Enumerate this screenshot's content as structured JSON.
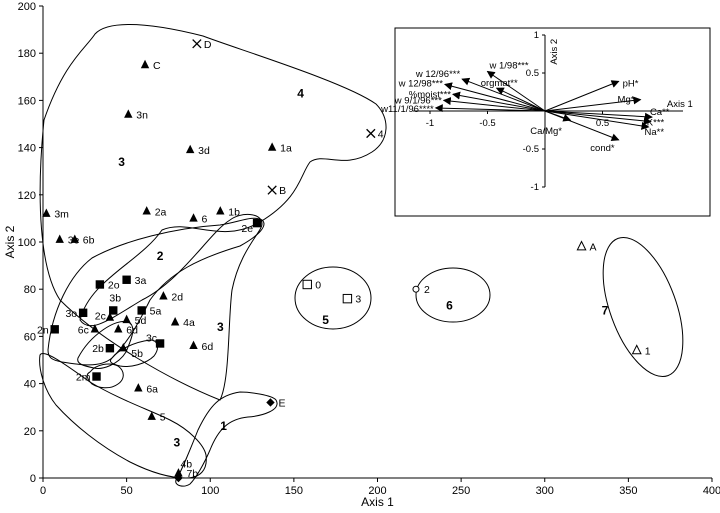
{
  "chart_data": {
    "type": "scatter",
    "title": "",
    "xlabel": "Axis 1",
    "ylabel": "Axis 2",
    "xlim": [
      0,
      400
    ],
    "ylim": [
      0,
      200
    ],
    "xticks": [
      "0",
      "50",
      "100",
      "150",
      "200",
      "250",
      "300",
      "350",
      "400"
    ],
    "yticks": [
      "0",
      "20",
      "40",
      "60",
      "80",
      "100",
      "120",
      "140",
      "160",
      "180",
      "200"
    ],
    "points": [
      {
        "label": "D",
        "x": 92,
        "y": 184,
        "marker": "cross"
      },
      {
        "label": "C",
        "x": 61,
        "y": 175,
        "marker": "triangle"
      },
      {
        "label": "3n",
        "x": 51,
        "y": 154,
        "marker": "triangle"
      },
      {
        "label": "3d",
        "x": 88,
        "y": 139,
        "marker": "triangle"
      },
      {
        "label": "1a",
        "x": 137,
        "y": 140,
        "marker": "triangle"
      },
      {
        "label": "4",
        "x": 196,
        "y": 146,
        "marker": "cross"
      },
      {
        "label": "B",
        "x": 137,
        "y": 122,
        "marker": "cross"
      },
      {
        "label": "3m",
        "x": 2,
        "y": 112,
        "marker": "triangle"
      },
      {
        "label": "2a",
        "x": 62,
        "y": 113,
        "marker": "triangle"
      },
      {
        "label": "6",
        "x": 90,
        "y": 110,
        "marker": "triangle"
      },
      {
        "label": "1b",
        "x": 106,
        "y": 113,
        "marker": "triangle"
      },
      {
        "label": "2e",
        "x": 128,
        "y": 108,
        "marker": "square"
      },
      {
        "label": "3e",
        "x": 10,
        "y": 101,
        "marker": "triangle"
      },
      {
        "label": "6b",
        "x": 19,
        "y": 101,
        "marker": "triangle"
      },
      {
        "label": "3a",
        "x": 50,
        "y": 84,
        "marker": "square"
      },
      {
        "label": "2o",
        "x": 34,
        "y": 82,
        "marker": "square"
      },
      {
        "label": "2d",
        "x": 72,
        "y": 77,
        "marker": "triangle"
      },
      {
        "label": "3b",
        "x": 42,
        "y": 71,
        "marker": "square"
      },
      {
        "label": "5a",
        "x": 59,
        "y": 71,
        "marker": "square"
      },
      {
        "label": "3o",
        "x": 24,
        "y": 70,
        "marker": "square"
      },
      {
        "label": "2c",
        "x": 40,
        "y": 68,
        "marker": "triangle"
      },
      {
        "label": "5d",
        "x": 50,
        "y": 67,
        "marker": "triangle"
      },
      {
        "label": "4a",
        "x": 79,
        "y": 66,
        "marker": "triangle"
      },
      {
        "label": "2n",
        "x": 7,
        "y": 63,
        "marker": "square"
      },
      {
        "label": "6c",
        "x": 31,
        "y": 63,
        "marker": "triangle"
      },
      {
        "label": "6d",
        "x": 45,
        "y": 63,
        "marker": "triangle"
      },
      {
        "label": "3c",
        "x": 70,
        "y": 57,
        "marker": "square"
      },
      {
        "label": "6d",
        "x": 90,
        "y": 56,
        "marker": "triangle"
      },
      {
        "label": "2b",
        "x": 40,
        "y": 55,
        "marker": "square"
      },
      {
        "label": "5b",
        "x": 48,
        "y": 55,
        "marker": "triangle"
      },
      {
        "label": "2m",
        "x": 32,
        "y": 43,
        "marker": "square"
      },
      {
        "label": "6a",
        "x": 57,
        "y": 38,
        "marker": "triangle"
      },
      {
        "label": "5",
        "x": 65,
        "y": 26,
        "marker": "triangle"
      },
      {
        "label": "E",
        "x": 136,
        "y": 32,
        "marker": "diamond"
      },
      {
        "label": "4b",
        "x": 81,
        "y": 2,
        "marker": "triangle"
      },
      {
        "label": "7b",
        "x": 81,
        "y": 0,
        "marker": "diamond"
      },
      {
        "label": "0",
        "x": 158,
        "y": 82,
        "marker": "open-square"
      },
      {
        "label": "3",
        "x": 182,
        "y": 76,
        "marker": "open-square"
      },
      {
        "label": "2",
        "x": 223,
        "y": 80,
        "marker": "open-circle"
      },
      {
        "label": "A",
        "x": 322,
        "y": 98,
        "marker": "open-triangle"
      },
      {
        "label": "1",
        "x": 355,
        "y": 54,
        "marker": "open-triangle"
      }
    ],
    "group_labels": [
      {
        "label": "4",
        "x": 154,
        "y": 163
      },
      {
        "label": "3",
        "x": 47,
        "y": 134
      },
      {
        "label": "2",
        "x": 70,
        "y": 94
      },
      {
        "label": "3",
        "x": 106,
        "y": 64
      },
      {
        "label": "5",
        "x": 169,
        "y": 67
      },
      {
        "label": "6",
        "x": 243,
        "y": 73
      },
      {
        "label": "7",
        "x": 336,
        "y": 71
      },
      {
        "label": "1",
        "x": 108,
        "y": 22
      },
      {
        "label": "3",
        "x": 80,
        "y": 15
      }
    ],
    "inset": {
      "type": "biplot",
      "ylabel": "Axis 2",
      "xlabel": "Axis 1",
      "xlim": [
        -1,
        1
      ],
      "ylim": [
        -1,
        1
      ],
      "xticks": [
        "-1",
        "-0.5",
        "0.5"
      ],
      "yticks": [
        "1",
        "0.5",
        "-0.5",
        "-1"
      ],
      "vectors": [
        {
          "label": "w 12/96***",
          "x": -0.72,
          "y": 0.42
        },
        {
          "label": "w 1/98***",
          "x": -0.5,
          "y": 0.52
        },
        {
          "label": "w 12/98***",
          "x": -0.87,
          "y": 0.35
        },
        {
          "label": "orgmat**",
          "x": -0.42,
          "y": 0.3
        },
        {
          "label": "%moist***",
          "x": -0.8,
          "y": 0.22
        },
        {
          "label": "w 9/1/96***",
          "x": -0.88,
          "y": 0.14
        },
        {
          "label": "w11/1/96****",
          "x": -0.95,
          "y": 0.04
        },
        {
          "label": "pH*",
          "x": 0.64,
          "y": 0.39
        },
        {
          "label": "Mg*",
          "x": 0.83,
          "y": 0.15
        },
        {
          "label": "Ca**",
          "x": 0.93,
          "y": -0.08
        },
        {
          "label": "K***",
          "x": 0.92,
          "y": -0.14
        },
        {
          "label": "Na**",
          "x": 0.9,
          "y": -0.21
        },
        {
          "label": "cond*",
          "x": 0.64,
          "y": -0.38
        },
        {
          "label": "Ca/Mg*",
          "x": 0.22,
          "y": -0.12
        }
      ]
    }
  }
}
